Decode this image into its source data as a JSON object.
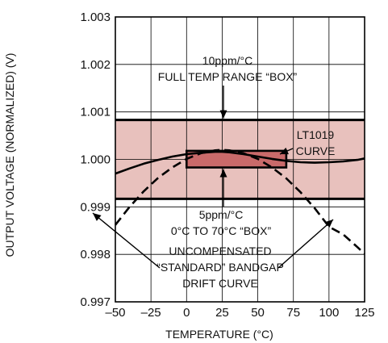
{
  "chart_data": {
    "type": "line",
    "xlabel": "TEMPERATURE (°C)",
    "ylabel": "OUTPUT VOLTAGE (NORMALIZED) (V)",
    "xlim": [
      -50,
      125
    ],
    "ylim": [
      0.997,
      1.003
    ],
    "x_ticks": [
      "–50",
      "–25",
      "0",
      "25",
      "50",
      "75",
      "100",
      "125"
    ],
    "x_tick_values": [
      -50,
      -25,
      0,
      25,
      50,
      75,
      100,
      125
    ],
    "y_ticks": [
      "0.997",
      "0.998",
      "0.999",
      "1.000",
      "1.001",
      "1.002",
      "1.003"
    ],
    "y_tick_values": [
      0.997,
      0.998,
      0.999,
      1.0,
      1.001,
      1.002,
      1.003
    ],
    "grid": true,
    "colors": {
      "full_box_fill": "#e8c1bd",
      "small_box_fill": "#c96a6a",
      "line": "#000000",
      "grid": "#000000"
    },
    "regions": [
      {
        "label": [
          "10ppm/°C",
          "FULL TEMP RANGE “BOX”"
        ],
        "x": [
          -50,
          125
        ],
        "y": [
          0.99917,
          1.00083
        ]
      },
      {
        "label": [
          "5ppm/°C",
          "0°C TO 70°C “BOX”"
        ],
        "x": [
          0,
          70
        ],
        "y": [
          0.99983,
          1.00018
        ]
      }
    ],
    "series": [
      {
        "name": "LT1019 CURVE",
        "style": "solid",
        "x": [
          -50,
          -40,
          -30,
          -20,
          -10,
          0,
          10,
          20,
          25,
          30,
          40,
          50,
          60,
          70,
          80,
          90,
          100,
          110,
          120,
          125
        ],
        "y": [
          0.9997,
          0.99981,
          0.99991,
          0.99999,
          1.00006,
          1.00011,
          1.00014,
          1.00016,
          1.00016,
          1.00015,
          1.00011,
          1.00006,
          1.00001,
          0.99997,
          0.99994,
          0.99993,
          0.99994,
          0.99996,
          0.99999,
          1.00002
        ]
      },
      {
        "name": "UNCOMPENSATED “STANDARD” BANDGAP DRIFT CURVE",
        "style": "dashed",
        "x": [
          -50,
          -40,
          -30,
          -20,
          -10,
          0,
          10,
          20,
          25,
          30,
          40,
          50,
          60,
          70,
          80,
          90,
          100,
          110,
          120,
          125
        ],
        "y": [
          0.99862,
          0.999,
          0.99933,
          0.99961,
          0.99983,
          1.00001,
          1.00013,
          1.00019,
          1.0002,
          1.00019,
          1.00013,
          1.00001,
          0.99983,
          0.9996,
          0.99931,
          0.99897,
          0.99858,
          0.99842,
          0.99815,
          0.99801
        ]
      }
    ],
    "annotations": {
      "full_box": [
        "10ppm/°C",
        "FULL TEMP RANGE “BOX”"
      ],
      "lt1019": [
        "LT1019",
        "CURVE"
      ],
      "small_box": [
        "5ppm/°C",
        "0°C TO 70°C “BOX”"
      ],
      "uncomp": [
        "UNCOMPENSATED",
        "“STANDARD” BANDGAP",
        "DRIFT CURVE"
      ]
    }
  }
}
